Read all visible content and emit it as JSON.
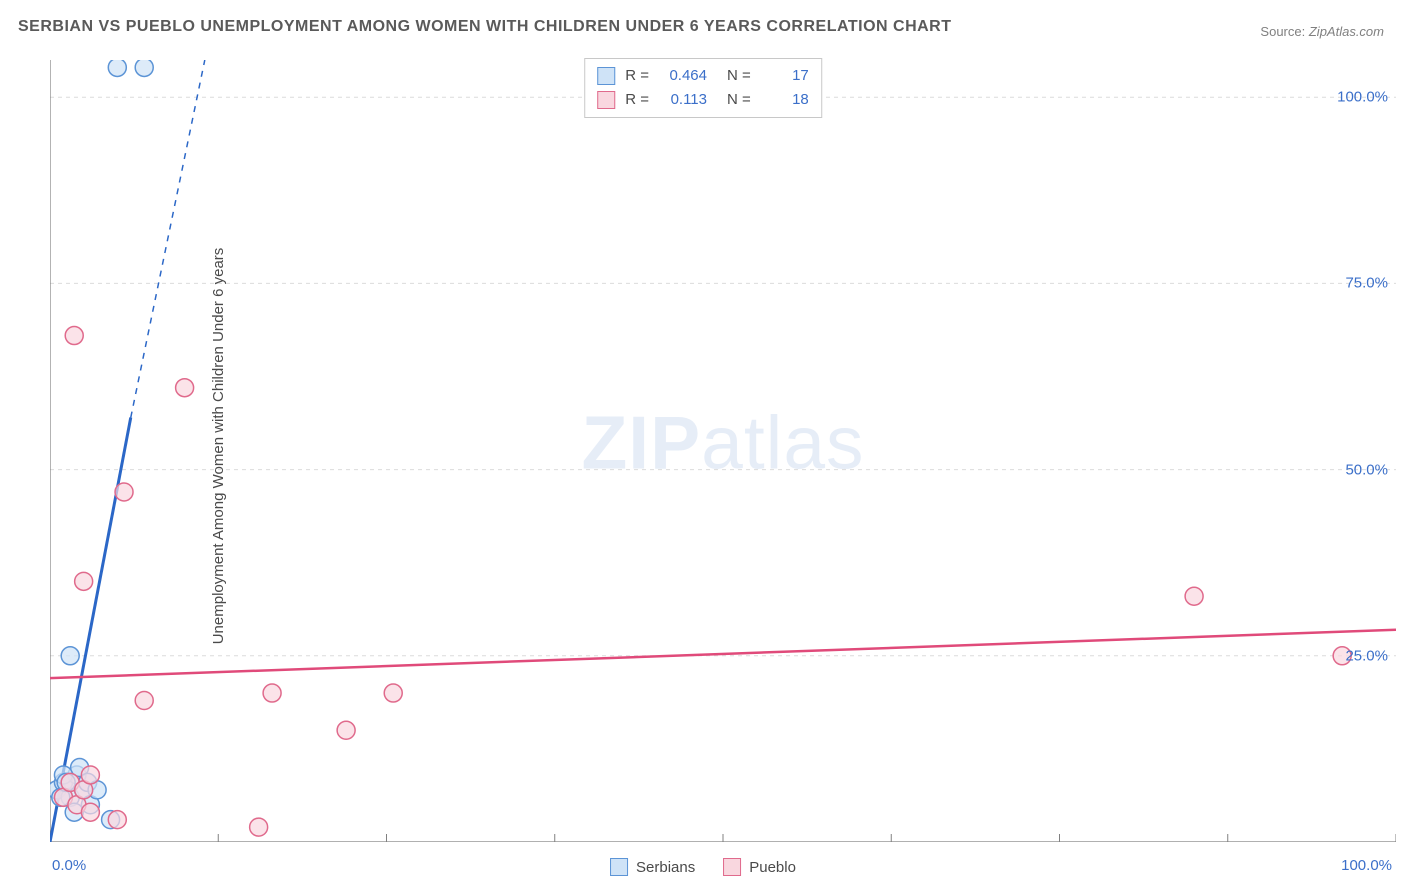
{
  "title": "SERBIAN VS PUEBLO UNEMPLOYMENT AMONG WOMEN WITH CHILDREN UNDER 6 YEARS CORRELATION CHART",
  "source_label": "Source:",
  "source_value": "ZipAtlas.com",
  "ylabel": "Unemployment Among Women with Children Under 6 years",
  "watermark_bold": "ZIP",
  "watermark_light": "atlas",
  "chart": {
    "type": "scatter",
    "xlim": [
      0,
      100
    ],
    "ylim": [
      0,
      105
    ],
    "xtick_major": [
      0,
      12.5,
      25,
      37.5,
      50,
      62.5,
      75,
      87.5,
      100
    ],
    "ytick_major": [
      25,
      50,
      75,
      100
    ],
    "ytick_labels": [
      "25.0%",
      "50.0%",
      "75.0%",
      "100.0%"
    ],
    "xmin_label": "0.0%",
    "xmax_label": "100.0%",
    "background_color": "#ffffff",
    "grid_color": "#dcdcdc",
    "axis_color": "#808080",
    "marker_radius": 9,
    "marker_stroke_width": 1.5,
    "series": [
      {
        "name": "Serbians",
        "color_fill": "#cfe3f7",
        "color_stroke": "#5c94d6",
        "R": "0.464",
        "N": "17",
        "trend": {
          "x1": 0,
          "y1": 0,
          "x2": 6.0,
          "y2": 57,
          "dash_x2": 11.5,
          "dash_y2": 105,
          "color": "#2b67c7",
          "width": 3
        },
        "points": [
          [
            0.5,
            7
          ],
          [
            1.0,
            8
          ],
          [
            1.5,
            6
          ],
          [
            2.0,
            9
          ],
          [
            2.5,
            7
          ],
          [
            1.8,
            4
          ],
          [
            2.2,
            10
          ],
          [
            2.8,
            8
          ],
          [
            3.0,
            5
          ],
          [
            3.5,
            7
          ],
          [
            4.5,
            3
          ],
          [
            1.5,
            25
          ],
          [
            5.0,
            104
          ],
          [
            7.0,
            104
          ],
          [
            1.0,
            9
          ],
          [
            0.8,
            6
          ],
          [
            1.2,
            8
          ]
        ]
      },
      {
        "name": "Pueblo",
        "color_fill": "#f9d7df",
        "color_stroke": "#e06a8c",
        "R": "0.113",
        "N": "18",
        "trend": {
          "x1": 0,
          "y1": 22,
          "x2": 100,
          "y2": 28.5,
          "color": "#e04a7a",
          "width": 2.5
        },
        "points": [
          [
            1.0,
            6
          ],
          [
            2.0,
            5
          ],
          [
            3.0,
            4
          ],
          [
            1.5,
            8
          ],
          [
            2.5,
            7
          ],
          [
            5.0,
            3
          ],
          [
            7.0,
            19
          ],
          [
            15.5,
            2
          ],
          [
            16.5,
            20
          ],
          [
            22.0,
            15
          ],
          [
            25.5,
            20
          ],
          [
            2.5,
            35
          ],
          [
            5.5,
            47
          ],
          [
            10.0,
            61
          ],
          [
            1.8,
            68
          ],
          [
            85.0,
            33
          ],
          [
            96.0,
            25
          ],
          [
            3.0,
            9
          ]
        ]
      }
    ]
  },
  "bottom_legend": [
    {
      "label": "Serbians",
      "fill": "#cfe3f7",
      "stroke": "#5c94d6"
    },
    {
      "label": "Pueblo",
      "fill": "#f9d7df",
      "stroke": "#e06a8c"
    }
  ]
}
